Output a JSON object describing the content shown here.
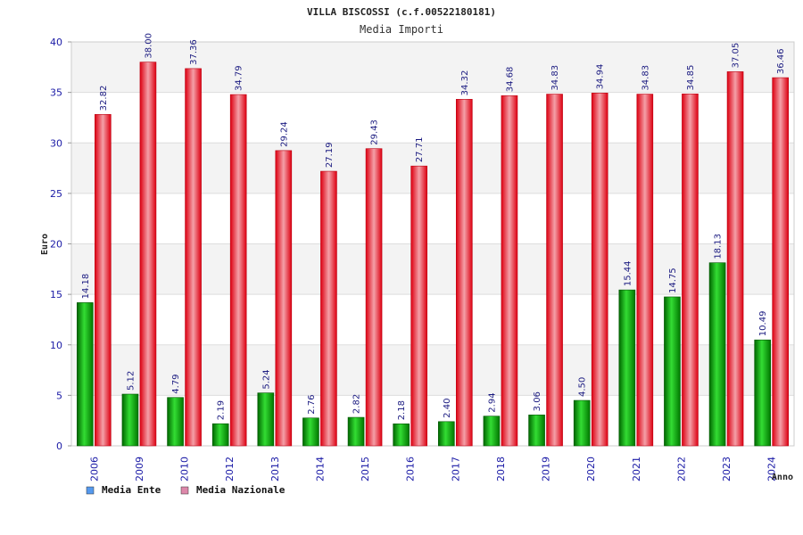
{
  "chart_data": {
    "type": "bar",
    "title": "VILLA BISCOSSI (c.f.00522180181)",
    "subtitle": "Media Importi",
    "ylabel": "Euro",
    "xlabel": "Anno",
    "ylim": [
      0,
      40
    ],
    "yticks": [
      "0",
      "5",
      "10",
      "15",
      "20",
      "25",
      "30",
      "35",
      "40"
    ],
    "categories": [
      "2006",
      "2009",
      "2010",
      "2012",
      "2013",
      "2014",
      "2015",
      "2016",
      "2017",
      "2018",
      "2019",
      "2020",
      "2021",
      "2022",
      "2023",
      "2024"
    ],
    "series": [
      {
        "name": "Media Ente",
        "color": "#00aa00",
        "legend_color": "#5599ee",
        "values": [
          14.18,
          5.12,
          4.79,
          2.19,
          5.24,
          2.76,
          2.82,
          2.18,
          2.4,
          2.94,
          3.06,
          4.5,
          15.44,
          14.75,
          18.13,
          10.49
        ],
        "labels": [
          "14.18",
          "5.12",
          "4.79",
          "2.19",
          "5.24",
          "2.76",
          "2.82",
          "2.18",
          "2.40",
          "2.94",
          "3.06",
          "4.50",
          "15.44",
          "14.75",
          "18.13",
          "10.49"
        ]
      },
      {
        "name": "Media Nazionale",
        "color": "#ee1122",
        "legend_color": "#dd88aa",
        "values": [
          32.82,
          38.0,
          37.36,
          34.79,
          29.24,
          27.19,
          29.43,
          27.71,
          34.32,
          34.68,
          34.83,
          34.94,
          34.83,
          34.85,
          37.05,
          36.46
        ],
        "labels": [
          "32.82",
          "38.00",
          "37.36",
          "34.79",
          "29.24",
          "27.19",
          "29.43",
          "27.71",
          "34.32",
          "34.68",
          "34.83",
          "34.94",
          "34.83",
          "34.85",
          "37.05",
          "36.46"
        ]
      }
    ],
    "grid": true,
    "legend_position": "bottom-left"
  }
}
